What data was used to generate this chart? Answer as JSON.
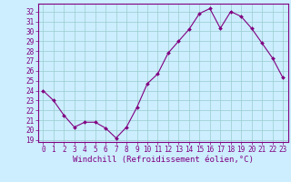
{
  "x": [
    0,
    1,
    2,
    3,
    4,
    5,
    6,
    7,
    8,
    9,
    10,
    11,
    12,
    13,
    14,
    15,
    16,
    17,
    18,
    19,
    20,
    21,
    22,
    23
  ],
  "y": [
    24.0,
    23.0,
    21.5,
    20.3,
    20.8,
    20.8,
    20.2,
    19.2,
    20.3,
    22.3,
    24.7,
    25.7,
    27.8,
    29.0,
    30.2,
    31.8,
    32.3,
    30.3,
    32.0,
    31.5,
    30.3,
    28.8,
    27.3,
    25.3
  ],
  "line_color": "#800080",
  "marker": "D",
  "marker_size": 2.0,
  "bg_color": "#cceeff",
  "grid_color": "#99cccc",
  "xlabel": "Windchill (Refroidissement éolien,°C)",
  "xlim": [
    -0.5,
    23.5
  ],
  "ylim": [
    18.8,
    32.8
  ],
  "yticks": [
    19,
    20,
    21,
    22,
    23,
    24,
    25,
    26,
    27,
    28,
    29,
    30,
    31,
    32
  ],
  "xticks": [
    0,
    1,
    2,
    3,
    4,
    5,
    6,
    7,
    8,
    9,
    10,
    11,
    12,
    13,
    14,
    15,
    16,
    17,
    18,
    19,
    20,
    21,
    22,
    23
  ],
  "tick_color": "#800080",
  "tick_fontsize": 5.5,
  "xlabel_fontsize": 6.5,
  "line_width": 0.8
}
